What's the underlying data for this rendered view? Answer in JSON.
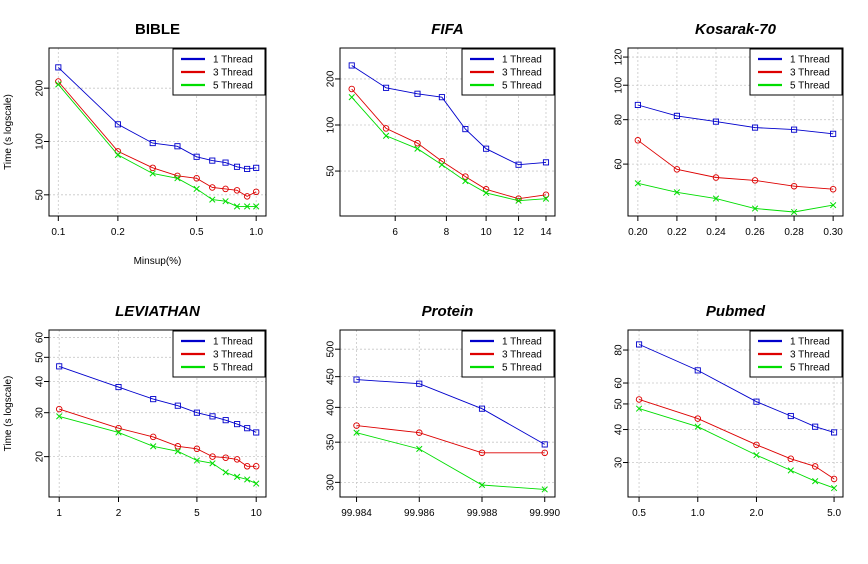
{
  "ylabel": "Time (s logscale)",
  "series_names": [
    "1 Thread",
    "3 Thread",
    "5 Thread"
  ],
  "colors": {
    "1 Thread": "#0000cc",
    "3 Thread": "#dd0000",
    "5 Thread": "#00dd00"
  },
  "markers": {
    "1 Thread": "square",
    "3 Thread": "circle",
    "5 Thread": "x"
  },
  "chart_data": [
    {
      "type": "line",
      "title": "BIBLE",
      "title_italic": false,
      "xlabel": "Minsup(%)",
      "ylabel": "Time (s logscale)",
      "xscale": "log",
      "yscale": "log",
      "xlim": [
        0.094,
        1.07
      ],
      "ylim": [
        40,
        320
      ],
      "xticks": [
        0.1,
        0.2,
        0.5,
        1.0
      ],
      "xtick_labels": [
        "0.1",
        "0.2",
        "0.5",
        "1.0"
      ],
      "yticks": [
        50,
        100,
        200
      ],
      "ytick_labels": [
        "50",
        "100",
        "200"
      ],
      "grid": true,
      "legend": "top-right",
      "x": [
        0.1,
        0.2,
        0.3,
        0.4,
        0.5,
        0.6,
        0.7,
        0.8,
        0.9,
        1.0
      ],
      "series": [
        {
          "name": "1 Thread",
          "values": [
            262,
            125,
            98,
            94,
            82,
            78,
            76,
            72,
            70,
            71
          ]
        },
        {
          "name": "3 Thread",
          "values": [
            218,
            88,
            71,
            64,
            62,
            55,
            54,
            53,
            49,
            52
          ]
        },
        {
          "name": "5 Thread",
          "values": [
            210,
            84,
            66,
            62,
            54,
            47,
            46,
            43,
            43,
            43
          ]
        }
      ]
    },
    {
      "type": "line",
      "title": "FIFA",
      "title_italic": true,
      "xlabel": "",
      "ylabel": "",
      "xscale": "log",
      "yscale": "log",
      "xlim": [
        4.5,
        14.4
      ],
      "ylim": [
        27,
        300
      ],
      "xticks": [
        6,
        8,
        10,
        12,
        14
      ],
      "xtick_labels": [
        "6",
        "8",
        "10",
        "12",
        "14"
      ],
      "yticks": [
        50,
        100,
        200
      ],
      "ytick_labels": [
        "50",
        "100",
        "200"
      ],
      "grid": true,
      "legend": "top-right",
      "x": [
        4.7,
        5.7,
        6.8,
        7.8,
        8.9,
        10,
        12,
        14
      ],
      "series": [
        {
          "name": "1 Thread",
          "values": [
            245,
            175,
            160,
            152,
            94,
            70,
            55,
            57
          ]
        },
        {
          "name": "3 Thread",
          "values": [
            172,
            95,
            76,
            58,
            46,
            38,
            33,
            35
          ]
        },
        {
          "name": "5 Thread",
          "values": [
            152,
            85,
            70,
            55,
            43,
            36,
            32,
            33
          ]
        }
      ]
    },
    {
      "type": "line",
      "title": "Kosarak-70",
      "title_italic": true,
      "xlabel": "",
      "ylabel": "",
      "xscale": "linear",
      "yscale": "log",
      "xlim": [
        0.197,
        0.303
      ],
      "ylim": [
        44,
        124
      ],
      "xticks": [
        0.2,
        0.22,
        0.24,
        0.26,
        0.28,
        0.3
      ],
      "xtick_labels": [
        "0.20",
        "0.22",
        "0.24",
        "0.26",
        "0.28",
        "0.30"
      ],
      "yticks": [
        60,
        80,
        100,
        120
      ],
      "ytick_labels": [
        "60",
        "80",
        "100",
        "120"
      ],
      "grid": true,
      "legend": "top-right",
      "x": [
        0.2,
        0.22,
        0.24,
        0.26,
        0.28,
        0.3
      ],
      "series": [
        {
          "name": "1 Thread",
          "values": [
            88,
            82,
            79,
            76,
            75,
            73
          ]
        },
        {
          "name": "3 Thread",
          "values": [
            70,
            58,
            55,
            54,
            52,
            51
          ]
        },
        {
          "name": "5 Thread",
          "values": [
            53,
            50,
            48,
            45,
            44,
            46
          ]
        }
      ]
    },
    {
      "type": "line",
      "title": "LEVIATHAN",
      "title_italic": true,
      "xlabel": "",
      "ylabel": "Time (s logscale)",
      "xscale": "log",
      "yscale": "log",
      "xlim": [
        0.93,
        10.7
      ],
      "ylim": [
        14.3,
        62
      ],
      "xticks": [
        1,
        2,
        5,
        10
      ],
      "xtick_labels": [
        "1",
        "2",
        "5",
        "10"
      ],
      "yticks": [
        20,
        30,
        40,
        50,
        60
      ],
      "ytick_labels": [
        "20",
        "30",
        "40",
        "50",
        "60"
      ],
      "grid": true,
      "legend": "top-right",
      "x": [
        1,
        2,
        3,
        4,
        5,
        6,
        7,
        8,
        9,
        10
      ],
      "series": [
        {
          "name": "1 Thread",
          "values": [
            46,
            38,
            34,
            32,
            30,
            29,
            28,
            27,
            26,
            25
          ]
        },
        {
          "name": "3 Thread",
          "values": [
            31,
            26,
            24,
            22,
            21.5,
            20,
            19.8,
            19.5,
            18.3,
            18.3
          ]
        },
        {
          "name": "5 Thread",
          "values": [
            29,
            25,
            22,
            21,
            19.3,
            18.8,
            17.3,
            16.6,
            16.2,
            15.6
          ]
        }
      ]
    },
    {
      "type": "line",
      "title": "Protein",
      "title_italic": true,
      "xlabel": "",
      "ylabel": "",
      "xscale": "linear",
      "yscale": "log",
      "xlim": [
        99.9836,
        99.9902
      ],
      "ylim": [
        288,
        530
      ],
      "xticks": [
        99.984,
        99.986,
        99.988,
        99.99
      ],
      "xtick_labels": [
        "99.984",
        "99.986",
        "99.988",
        "99.990"
      ],
      "yticks": [
        300,
        350,
        400,
        450,
        500
      ],
      "ytick_labels": [
        "300",
        "350",
        "400",
        "450",
        "500"
      ],
      "grid": true,
      "legend": "top-right",
      "x": [
        99.984,
        99.986,
        99.988,
        99.99
      ],
      "series": [
        {
          "name": "1 Thread",
          "values": [
            445,
            438,
            398,
            347
          ]
        },
        {
          "name": "3 Thread",
          "values": [
            373,
            363,
            336,
            336
          ]
        },
        {
          "name": "5 Thread",
          "values": [
            363,
            341,
            297,
            292
          ]
        }
      ]
    },
    {
      "type": "line",
      "title": "Pubmed",
      "title_italic": true,
      "xlabel": "",
      "ylabel": "",
      "xscale": "log",
      "yscale": "log",
      "xlim": [
        0.46,
        5.3
      ],
      "ylim": [
        23,
        92
      ],
      "xticks": [
        0.5,
        1.0,
        2.0,
        5.0
      ],
      "xtick_labels": [
        "0.5",
        "1.0",
        "2.0",
        "5.0"
      ],
      "yticks": [
        30,
        40,
        50,
        60,
        80
      ],
      "ytick_labels": [
        "30",
        "40",
        "50",
        "60",
        "80"
      ],
      "grid": true,
      "legend": "top-right",
      "x": [
        0.5,
        1.0,
        2.0,
        3.0,
        4.0,
        5.0
      ],
      "series": [
        {
          "name": "1 Thread",
          "values": [
            84,
            67,
            51,
            45,
            41,
            39
          ]
        },
        {
          "name": "3 Thread",
          "values": [
            52,
            44,
            35,
            31,
            29,
            26
          ]
        },
        {
          "name": "5 Thread",
          "values": [
            48,
            41,
            32,
            28,
            25.5,
            24
          ]
        }
      ]
    }
  ]
}
